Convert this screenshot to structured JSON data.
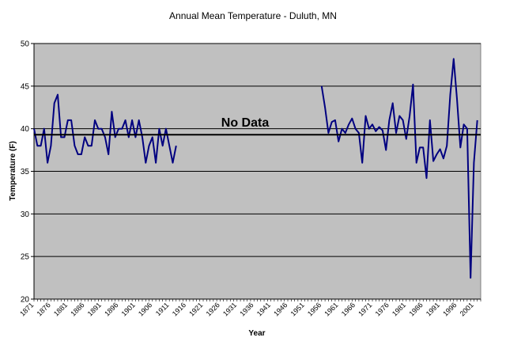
{
  "chart_data": {
    "type": "line",
    "title": "Annual Mean Temperature - Duluth, MN",
    "xlabel": "Year",
    "ylabel": "Temperature (F)",
    "xlim": [
      1871,
      2003
    ],
    "ylim": [
      20,
      50
    ],
    "yticks": [
      20,
      25,
      30,
      35,
      40,
      45,
      50
    ],
    "xticks": [
      1871,
      1876,
      1881,
      1886,
      1891,
      1896,
      1901,
      1906,
      1911,
      1916,
      1921,
      1926,
      1931,
      1936,
      1941,
      1946,
      1951,
      1956,
      1961,
      1966,
      1971,
      1976,
      1981,
      1986,
      1991,
      1996,
      2001
    ],
    "grid": "horizontal",
    "legend": "none",
    "colors": {
      "plot_background": "#c0c0c0",
      "series": "#000080",
      "reference_line": "#000000"
    },
    "annotation": {
      "text": "No Data"
    },
    "reference_line": {
      "y": 39.3
    },
    "series": [
      {
        "segments": [
          {
            "x": [
              1871,
              1872,
              1873,
              1874,
              1875,
              1876,
              1877,
              1878,
              1879,
              1880,
              1881,
              1882,
              1883,
              1884,
              1885,
              1886,
              1887,
              1888,
              1889,
              1890,
              1891,
              1892,
              1893,
              1894,
              1895,
              1896,
              1897,
              1898,
              1899,
              1900,
              1901,
              1902,
              1903,
              1904,
              1905,
              1906,
              1907,
              1908,
              1909,
              1910,
              1911,
              1912,
              1913
            ],
            "y": [
              40,
              38,
              38,
              40,
              36,
              38,
              43,
              44,
              39,
              39,
              41,
              41,
              38,
              37,
              37,
              39,
              38,
              38,
              41,
              40,
              40,
              39,
              37,
              42,
              39,
              40,
              40,
              41,
              39,
              41,
              39,
              41,
              39,
              36,
              38,
              39,
              36,
              40,
              38,
              40,
              38,
              36,
              38
            ]
          },
          {
            "x": [
              1956,
              1957,
              1958,
              1959,
              1960,
              1961,
              1962,
              1963,
              1964,
              1965,
              1966,
              1967,
              1968,
              1969,
              1970,
              1971,
              1972,
              1973,
              1974,
              1975,
              1976,
              1977,
              1978,
              1979,
              1980,
              1981,
              1982,
              1983,
              1984,
              1985,
              1986,
              1987,
              1988,
              1989,
              1990,
              1991,
              1992,
              1993,
              1994,
              1995,
              1996,
              1997,
              1998,
              1999,
              2000,
              2001,
              2002
            ],
            "y": [
              45,
              42.5,
              39.5,
              40.8,
              41,
              38.5,
              40,
              39.5,
              40.5,
              41.2,
              40,
              39.5,
              36,
              41.5,
              40,
              40.5,
              39.7,
              40.2,
              39.8,
              37.5,
              41,
              43,
              39.5,
              41.5,
              41,
              38.8,
              41.5,
              45.2,
              36,
              37.8,
              37.8,
              34.2,
              41,
              36.2,
              37,
              37.6,
              36.5,
              38,
              44,
              48.2,
              43.5,
              37.8,
              40.5,
              40,
              22.5,
              36,
              41
            ]
          }
        ]
      }
    ]
  }
}
